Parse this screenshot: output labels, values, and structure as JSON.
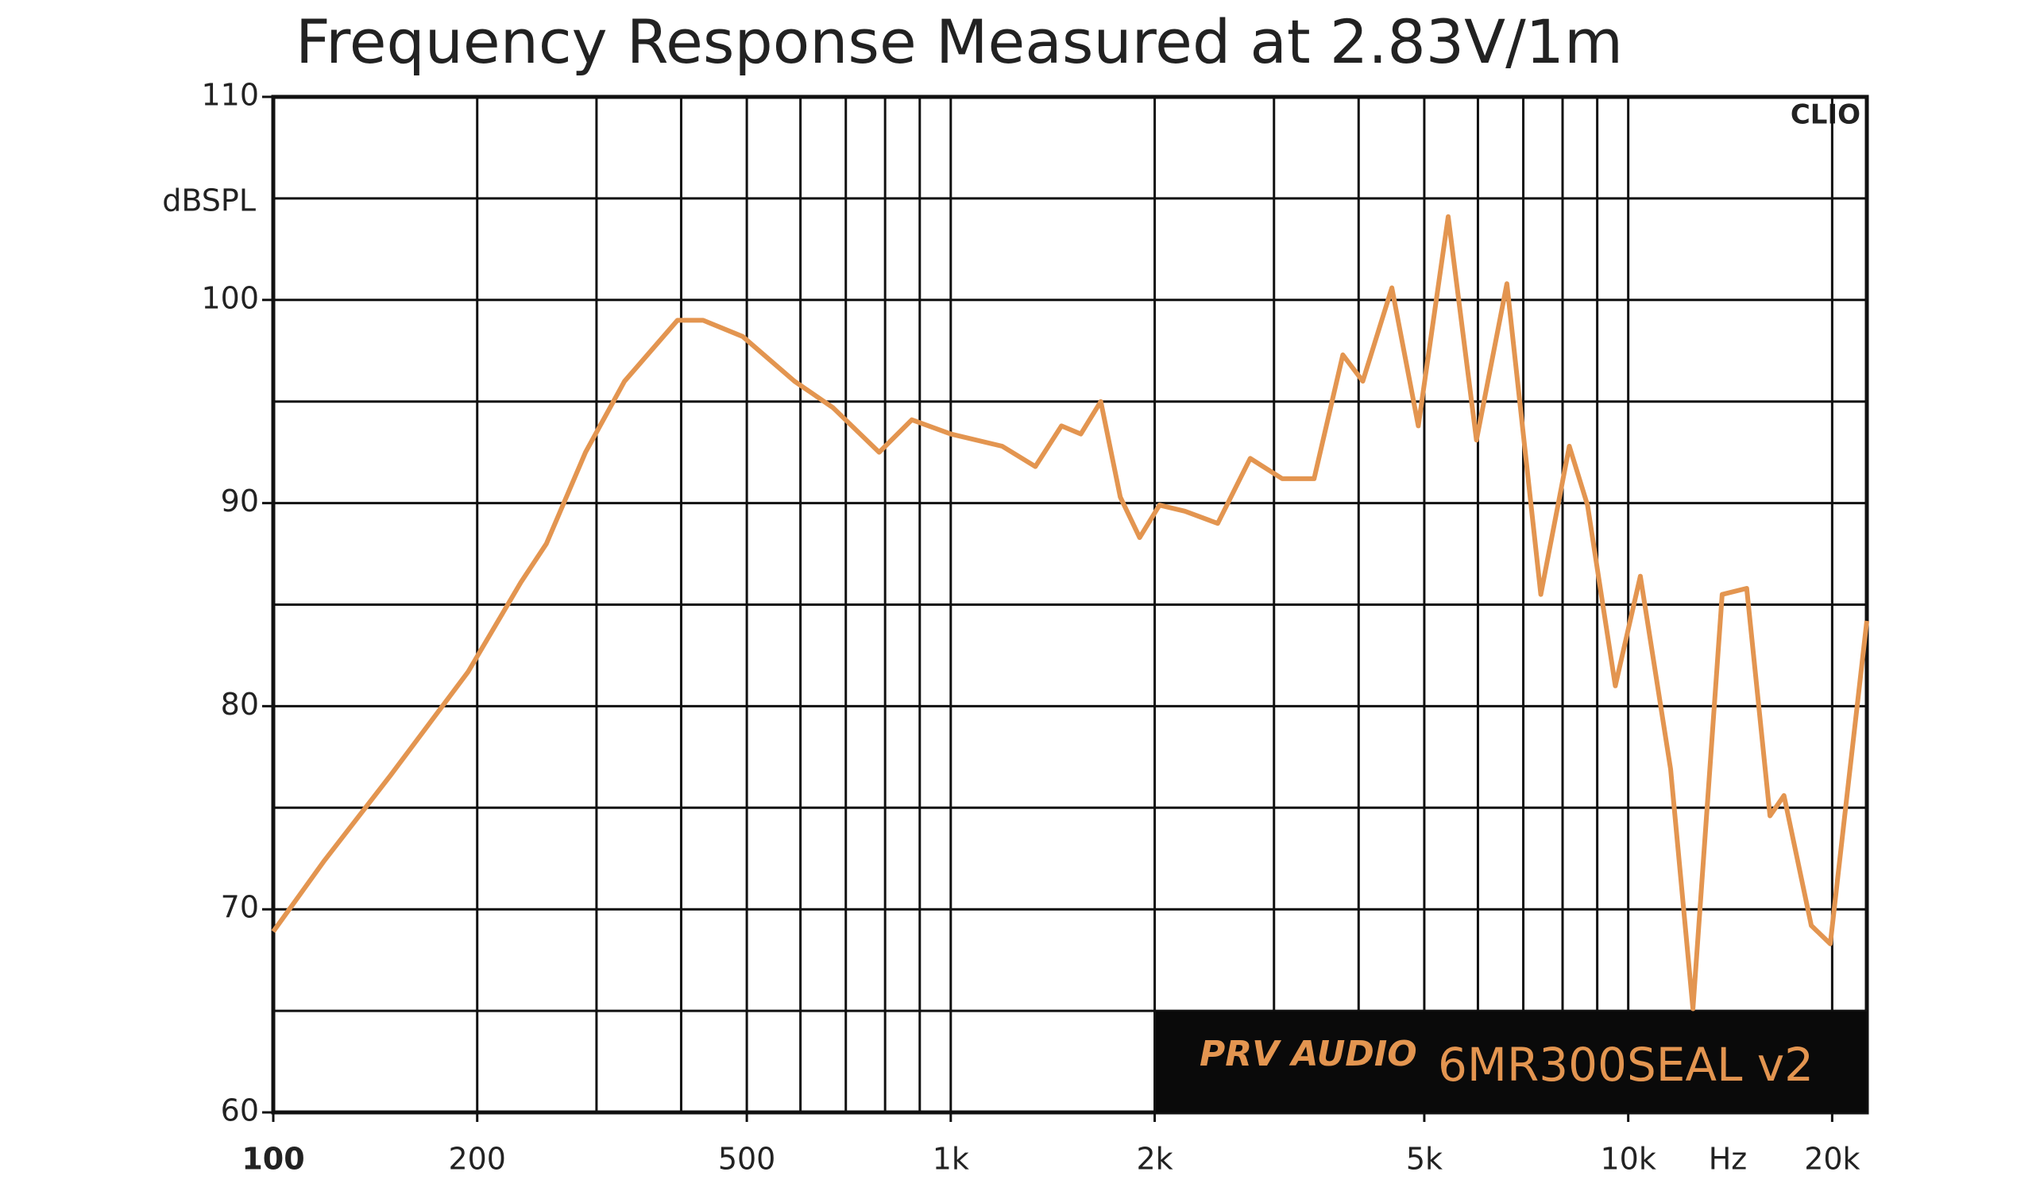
{
  "chart_data": {
    "type": "line",
    "title": "Frequency Response Measured at 2.83V/1m",
    "y_label": "dBSPL",
    "x_label": "Hz",
    "watermark": "CLIO",
    "brand": "PRV AUDIO",
    "model": "6MR300SEAL v2",
    "x_log": true,
    "grid": true,
    "xlim": [
      100,
      22500
    ],
    "ylim": [
      60,
      110
    ],
    "xticks": [
      100,
      200,
      500,
      {
        "value": 1000,
        "label": "1k"
      },
      {
        "value": 2000,
        "label": "2k"
      },
      {
        "value": 5000,
        "label": "5k"
      },
      {
        "value": 10000,
        "label": "10k"
      },
      {
        "value": 20000,
        "label": "20k"
      }
    ],
    "x_minor_grid": [
      300,
      400,
      600,
      700,
      800,
      900,
      3000,
      4000,
      6000,
      7000,
      8000,
      9000
    ],
    "yticks": [
      60,
      70,
      80,
      90,
      100,
      110
    ],
    "y_minor_grid": [
      65,
      75,
      85,
      95,
      105
    ],
    "series": [
      {
        "name": "6MR300SEAL v2",
        "color": "#e39550",
        "x": [
          100,
          119,
          149,
          194,
          232,
          253,
          289,
          330,
          395,
          431,
          493,
          588,
          670,
          784,
          876,
          1000,
          1191,
          1333,
          1457,
          1556,
          1665,
          1779,
          1900,
          2033,
          2216,
          2478,
          2767,
          3085,
          3438,
          3791,
          4057,
          4478,
          4900,
          5423,
          5970,
          6620,
          7430,
          8185,
          8708,
          9570,
          10420,
          11550,
          12460,
          13760,
          14960,
          16190,
          16980,
          18630,
          19870,
          21080,
          22500
        ],
        "values": [
          68.9,
          72.4,
          76.6,
          81.7,
          86.1,
          88.0,
          92.5,
          96.0,
          99.0,
          99.0,
          98.2,
          96.0,
          94.7,
          92.5,
          94.1,
          93.4,
          92.8,
          91.8,
          93.8,
          93.4,
          95.0,
          90.3,
          88.3,
          89.9,
          89.6,
          89.0,
          92.2,
          91.2,
          91.2,
          97.3,
          96.0,
          100.6,
          93.8,
          104.1,
          93.1,
          100.8,
          85.5,
          92.8,
          89.9,
          81.0,
          86.4,
          76.9,
          65.1,
          85.5,
          85.8,
          74.6,
          75.6,
          69.2,
          68.3,
          75.9,
          84.2
        ]
      }
    ]
  }
}
